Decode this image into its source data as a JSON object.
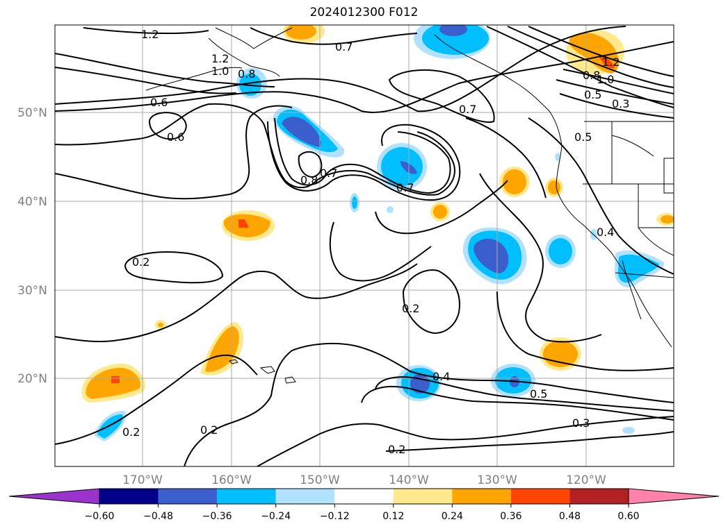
{
  "title": "2024012300 F012",
  "map": {
    "lat_labels": [
      "50°N",
      "40°N",
      "30°N",
      "20°N"
    ],
    "lon_labels": [
      "170°W",
      "160°W",
      "150°W",
      "140°W",
      "130°W",
      "120°W"
    ],
    "label_color": "#808080",
    "contour_labels": [
      "1.2",
      "1.2",
      "1.0",
      "0.8",
      "0.7",
      "0.6",
      "0.6",
      "0.8",
      "0.7",
      "0.7",
      "0.7",
      "1.2",
      "1.0",
      "0.8",
      "0.5",
      "0.3",
      "0.5",
      "0.4",
      "0.2",
      "0.2",
      "0.2",
      "0.2",
      "0.4",
      "0.5",
      "0.3",
      "0.2"
    ]
  },
  "colorbar": {
    "ticks": [
      "−0.60",
      "−0.48",
      "−0.36",
      "−0.24",
      "−0.12",
      "0.12",
      "0.24",
      "0.36",
      "0.48",
      "0.60"
    ],
    "colors": [
      "#9933cc",
      "#00008b",
      "#3a5fcd",
      "#00bfff",
      "#b0e2ff",
      "#ffffff",
      "#ffe98c",
      "#ffa500",
      "#ff4500",
      "#b22222",
      "#ff82ab"
    ]
  },
  "fill_colors": {
    "neg_light": "#b0e2ff",
    "neg_mid": "#00bfff",
    "neg_dark": "#3a5fcd",
    "pos_light": "#ffe98c",
    "pos_mid": "#ffa500",
    "pos_dark": "#ff4500"
  }
}
